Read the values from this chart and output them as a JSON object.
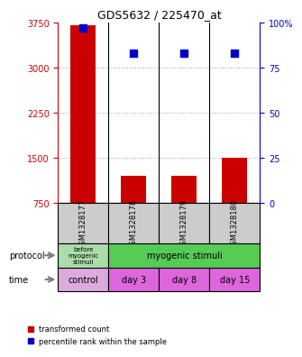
{
  "title": "GDS5632 / 225470_at",
  "samples": [
    "GSM1328177",
    "GSM1328178",
    "GSM1328179",
    "GSM1328180"
  ],
  "transformed_counts": [
    3700,
    1200,
    1200,
    1500
  ],
  "percentile_ranks": [
    97,
    83,
    83,
    83
  ],
  "ylim_left": [
    750,
    3750
  ],
  "ylim_right": [
    0,
    100
  ],
  "yticks_left": [
    750,
    1500,
    2250,
    3000,
    3750
  ],
  "yticks_right": [
    0,
    25,
    50,
    75,
    100
  ],
  "bar_color": "#cc0000",
  "dot_color": "#0000cc",
  "bar_bottom": 750,
  "grid_color": "#aaaaaa",
  "protocol_row": [
    "before\nmyogenic\nstimuli",
    "myogenic stimuli",
    "myogenic stimuli",
    "myogenic stimuli"
  ],
  "protocol_colors": [
    "#ccffcc",
    "#66dd66",
    "#66dd66",
    "#66dd66"
  ],
  "time_row": [
    "control",
    "day 3",
    "day 8",
    "day 15"
  ],
  "time_colors": [
    "#ee88ee",
    "#ee88ee",
    "#ee88ee",
    "#ee88ee"
  ],
  "sample_bg_color": "#cccccc",
  "left_axis_color": "#cc0000",
  "right_axis_color": "#0000cc",
  "fig_width": 3.2,
  "fig_height": 3.93
}
